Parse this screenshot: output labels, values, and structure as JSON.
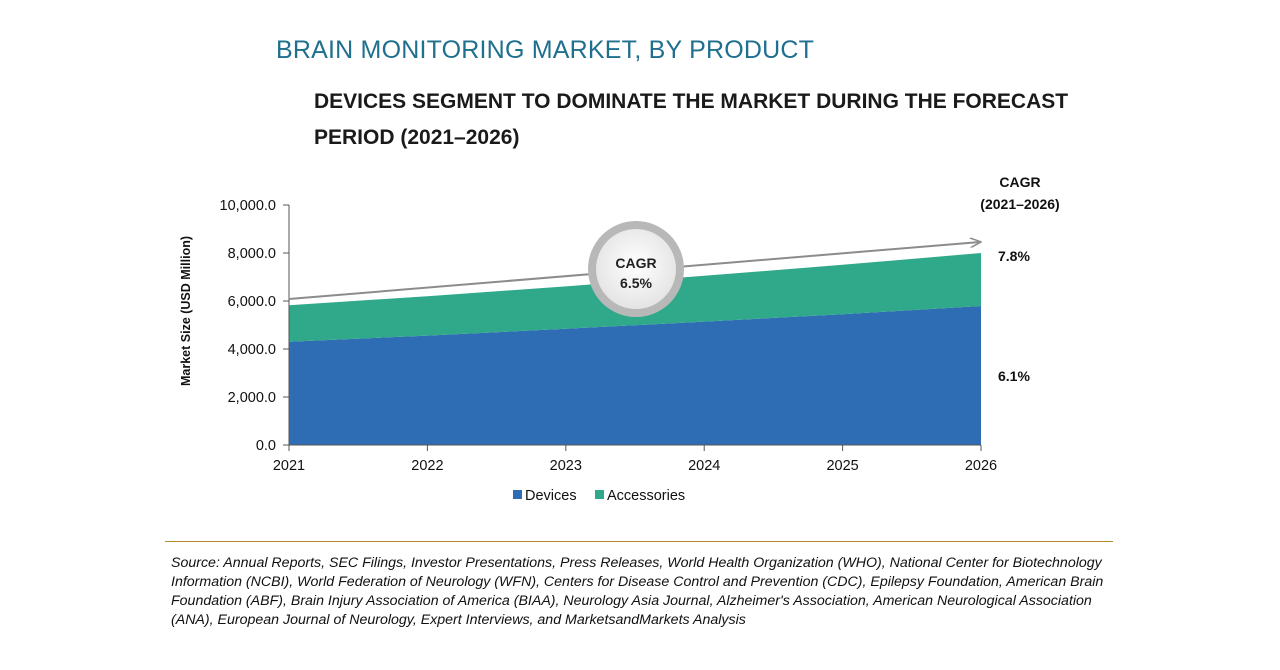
{
  "header": {
    "title": "BRAIN MONITORING MARKET, BY PRODUCT",
    "subtitle": "DEVICES SEGMENT TO DOMINATE THE MARKET DURING THE FORECAST PERIOD (2021–2026)"
  },
  "chart_data": {
    "type": "area",
    "stacked": true,
    "categories": [
      "2021",
      "2022",
      "2023",
      "2024",
      "2025",
      "2026"
    ],
    "series": [
      {
        "name": "Devices",
        "color": "#2e6db4",
        "values": [
          4300,
          4560,
          4840,
          5140,
          5450,
          5790
        ]
      },
      {
        "name": "Accessories",
        "color": "#2fa98a",
        "values": [
          1520,
          1640,
          1770,
          1910,
          2060,
          2210
        ]
      }
    ],
    "ylabel": "Market Size (USD Million)",
    "ylim": [
      0,
      10000
    ],
    "yticks": [
      "0.0",
      "2,000.0",
      "4,000.0",
      "6,000.0",
      "8,000.0",
      "10,000.0"
    ],
    "ytick_values": [
      0,
      2000,
      4000,
      6000,
      8000,
      10000
    ],
    "legend_position": "bottom",
    "cagr_header": [
      "CAGR",
      "(2021–2026)"
    ],
    "series_cagr": {
      "Devices": "6.1%",
      "Accessories": "7.8%"
    },
    "overall_cagr": {
      "label": "CAGR",
      "value": "6.5%"
    }
  },
  "footer": {
    "source": "Source: Annual Reports, SEC Filings, Investor Presentations, Press Releases, World Health Organization (WHO), National Center for Biotechnology Information (NCBI), World Federation of Neurology (WFN), Centers for Disease Control and Prevention (CDC), Epilepsy Foundation, American Brain Foundation (ABF), Brain Injury Association of America (BIAA), Neurology Asia Journal, Alzheimer's Association, American Neurological Association (ANA), European Journal of Neurology, Expert Interviews, and MarketsandMarkets Analysis"
  }
}
